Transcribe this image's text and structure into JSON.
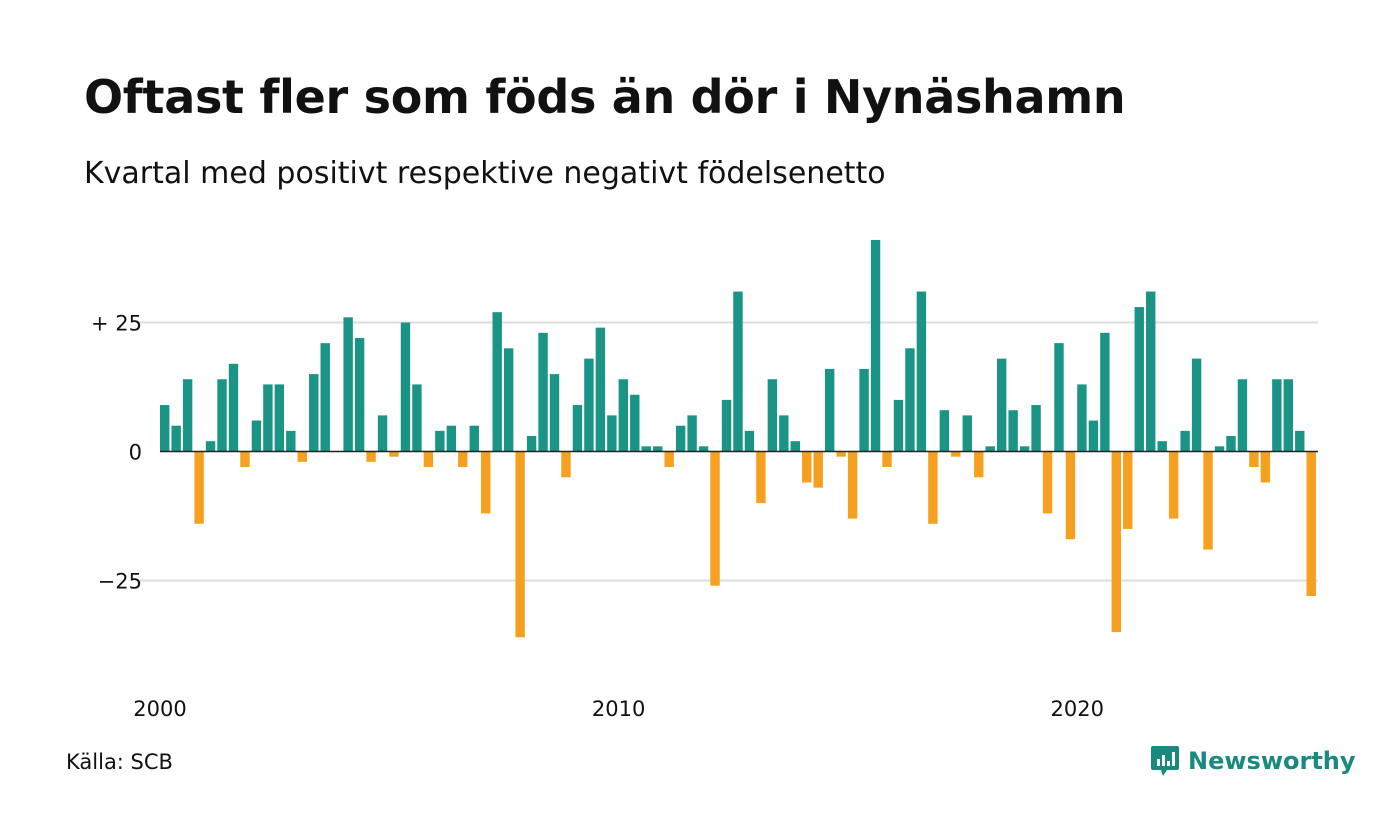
{
  "title": "Oftast fler som föds än dör i Nynäshamn",
  "subtitle": "Kvartal med positivt respektive negativt födelsenetto",
  "source": "Källa: SCB",
  "logo_text": "Newsworthy",
  "colors": {
    "positive": "#1a9485",
    "negative": "#f5a01e",
    "grid": "#dddddd",
    "brand": "#1a8a7f"
  },
  "chart_data": {
    "type": "bar",
    "title": "Oftast fler som föds än dör i Nynäshamn",
    "subtitle": "Kvartal med positivt respektive negativt födelsenetto",
    "xlabel": "",
    "ylabel": "",
    "ylim": [
      -40,
      42
    ],
    "yticks": [
      {
        "value": 25,
        "label": "+ 25"
      },
      {
        "value": 0,
        "label": "0"
      },
      {
        "value": -25,
        "label": "−25"
      }
    ],
    "xticks": [
      {
        "index": 0,
        "label": "2000"
      },
      {
        "index": 40,
        "label": "2010"
      },
      {
        "index": 80,
        "label": "2020"
      }
    ],
    "grid": true,
    "legend": "none",
    "values": [
      9,
      5,
      14,
      -14,
      2,
      14,
      17,
      -3,
      6,
      13,
      13,
      4,
      -2,
      15,
      21,
      0,
      26,
      22,
      -2,
      7,
      -1,
      25,
      13,
      -3,
      4,
      5,
      -3,
      5,
      -12,
      27,
      20,
      -36,
      3,
      23,
      15,
      -5,
      9,
      18,
      24,
      7,
      14,
      11,
      1,
      1,
      -3,
      5,
      7,
      1,
      -26,
      10,
      31,
      4,
      -10,
      14,
      7,
      2,
      -6,
      -7,
      16,
      -1,
      -13,
      16,
      41,
      -3,
      10,
      20,
      31,
      -14,
      8,
      -1,
      7,
      -5,
      1,
      18,
      8,
      1,
      9,
      -12,
      21,
      -17,
      13,
      6,
      23,
      -35,
      -15,
      28,
      31,
      2,
      -13,
      4,
      18,
      -19,
      1,
      3,
      14,
      -3,
      -6,
      14,
      14,
      4,
      -28
    ]
  }
}
